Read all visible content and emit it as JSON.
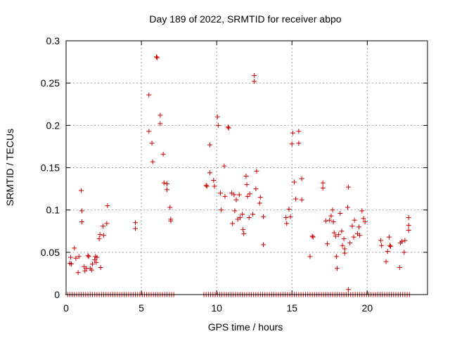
{
  "chart_data": {
    "type": "scatter",
    "title": "Day 189 of 2022, SRMTID for receiver abpo",
    "xlabel": "GPS time / hours",
    "ylabel": "SRMTID / TECUs",
    "xlim": [
      0,
      24
    ],
    "ylim": [
      0,
      0.3
    ],
    "xticks": [
      0,
      5,
      10,
      15,
      20
    ],
    "yticks": [
      0,
      0.05,
      0.1,
      0.15,
      0.2,
      0.25,
      0.3
    ],
    "ytick_labels": [
      "0",
      "0.05",
      "0.1",
      "0.15",
      "0.2",
      "0.25",
      "0.3"
    ],
    "grid": true,
    "marker": "+",
    "color": "#cc0000",
    "series": [
      {
        "name": "SRMTID",
        "points": [
          [
            0.25,
            0.037
          ],
          [
            0.3,
            0.044
          ],
          [
            0.35,
            0.036
          ],
          [
            0.55,
            0.055
          ],
          [
            0.65,
            0.043
          ],
          [
            0.8,
            0.026
          ],
          [
            0.85,
            0.045
          ],
          [
            1.0,
            0.123
          ],
          [
            1.05,
            0.099
          ],
          [
            1.05,
            0.086
          ],
          [
            1.2,
            0.033
          ],
          [
            1.25,
            0.028
          ],
          [
            1.35,
            0.031
          ],
          [
            1.45,
            0.046
          ],
          [
            1.5,
            0.045
          ],
          [
            1.6,
            0.031
          ],
          [
            1.7,
            0.029
          ],
          [
            1.75,
            0.036
          ],
          [
            1.9,
            0.041
          ],
          [
            1.95,
            0.045
          ],
          [
            2.0,
            0.038
          ],
          [
            2.05,
            0.044
          ],
          [
            2.2,
            0.066
          ],
          [
            2.25,
            0.071
          ],
          [
            2.3,
            0.032
          ],
          [
            2.45,
            0.081
          ],
          [
            2.5,
            0.07
          ],
          [
            2.7,
            0.084
          ],
          [
            2.75,
            0.105
          ],
          [
            4.6,
            0.085
          ],
          [
            4.6,
            0.078
          ],
          [
            5.5,
            0.236
          ],
          [
            5.5,
            0.193
          ],
          [
            5.7,
            0.179
          ],
          [
            5.75,
            0.157
          ],
          [
            6.0,
            0.281
          ],
          [
            6.05,
            0.28
          ],
          [
            6.25,
            0.212
          ],
          [
            6.25,
            0.202
          ],
          [
            6.45,
            0.166
          ],
          [
            6.5,
            0.132
          ],
          [
            6.7,
            0.131
          ],
          [
            6.7,
            0.124
          ],
          [
            6.9,
            0.103
          ],
          [
            6.95,
            0.089
          ],
          [
            6.95,
            0.087
          ],
          [
            9.3,
            0.129
          ],
          [
            9.35,
            0.128
          ],
          [
            9.55,
            0.177
          ],
          [
            9.55,
            0.144
          ],
          [
            9.8,
            0.135
          ],
          [
            9.85,
            0.128
          ],
          [
            10.05,
            0.21
          ],
          [
            10.1,
            0.2
          ],
          [
            10.25,
            0.12
          ],
          [
            10.3,
            0.1
          ],
          [
            10.5,
            0.152
          ],
          [
            10.55,
            0.116
          ],
          [
            10.75,
            0.198
          ],
          [
            10.8,
            0.197
          ],
          [
            11.0,
            0.12
          ],
          [
            11.05,
            0.084
          ],
          [
            11.15,
            0.118
          ],
          [
            11.2,
            0.099
          ],
          [
            11.3,
            0.112
          ],
          [
            11.4,
            0.089
          ],
          [
            11.5,
            0.118
          ],
          [
            11.55,
            0.091
          ],
          [
            11.7,
            0.095
          ],
          [
            11.75,
            0.077
          ],
          [
            11.8,
            0.072
          ],
          [
            11.95,
            0.14
          ],
          [
            12.0,
            0.13
          ],
          [
            12.05,
            0.116
          ],
          [
            12.15,
            0.091
          ],
          [
            12.2,
            0.119
          ],
          [
            12.4,
            0.095
          ],
          [
            12.5,
            0.259
          ],
          [
            12.5,
            0.252
          ],
          [
            12.6,
            0.125
          ],
          [
            12.65,
            0.146
          ],
          [
            12.85,
            0.108
          ],
          [
            12.9,
            0.115
          ],
          [
            13.1,
            0.092
          ],
          [
            13.1,
            0.059
          ],
          [
            14.6,
            0.091
          ],
          [
            14.65,
            0.084
          ],
          [
            14.8,
            0.101
          ],
          [
            14.9,
            0.092
          ],
          [
            15.05,
            0.191
          ],
          [
            15.0,
            0.178
          ],
          [
            15.15,
            0.133
          ],
          [
            15.25,
            0.113
          ],
          [
            15.45,
            0.193
          ],
          [
            15.45,
            0.179
          ],
          [
            15.65,
            0.137
          ],
          [
            15.65,
            0.112
          ],
          [
            16.2,
            0.045
          ],
          [
            16.35,
            0.069
          ],
          [
            16.4,
            0.068
          ],
          [
            17.05,
            0.132
          ],
          [
            17.05,
            0.126
          ],
          [
            17.25,
            0.087
          ],
          [
            17.35,
            0.06
          ],
          [
            17.5,
            0.088
          ],
          [
            17.6,
            0.093
          ],
          [
            17.7,
            0.1
          ],
          [
            17.75,
            0.086
          ],
          [
            17.8,
            0.073
          ],
          [
            17.9,
            0.069
          ],
          [
            17.95,
            0.045
          ],
          [
            18.0,
            0.031
          ],
          [
            18.1,
            0.071
          ],
          [
            18.2,
            0.096
          ],
          [
            18.3,
            0.075
          ],
          [
            18.35,
            0.058
          ],
          [
            18.45,
            0.066
          ],
          [
            18.5,
            0.054
          ],
          [
            18.5,
            0.049
          ],
          [
            18.7,
            0.103
          ],
          [
            18.75,
            0.127
          ],
          [
            18.75,
            0.006
          ],
          [
            18.85,
            0.061
          ],
          [
            19.0,
            0.081
          ],
          [
            19.1,
            0.068
          ],
          [
            19.15,
            0.088
          ],
          [
            19.35,
            0.072
          ],
          [
            19.45,
            0.08
          ],
          [
            19.5,
            0.07
          ],
          [
            19.65,
            0.099
          ],
          [
            19.75,
            0.09
          ],
          [
            19.85,
            0.086
          ],
          [
            20.9,
            0.064
          ],
          [
            20.95,
            0.058
          ],
          [
            21.25,
            0.039
          ],
          [
            21.35,
            0.051
          ],
          [
            21.45,
            0.068
          ],
          [
            21.5,
            0.058
          ],
          [
            21.55,
            0.057
          ],
          [
            22.15,
            0.032
          ],
          [
            22.2,
            0.061
          ],
          [
            22.3,
            0.063
          ],
          [
            22.45,
            0.05
          ],
          [
            22.5,
            0.064
          ],
          [
            22.75,
            0.091
          ],
          [
            22.75,
            0.082
          ],
          [
            22.75,
            0.076
          ]
        ],
        "zero_runs": [
          [
            0.1,
            7.2,
            0.15
          ],
          [
            9.15,
            22.8,
            0.15
          ]
        ]
      }
    ]
  }
}
